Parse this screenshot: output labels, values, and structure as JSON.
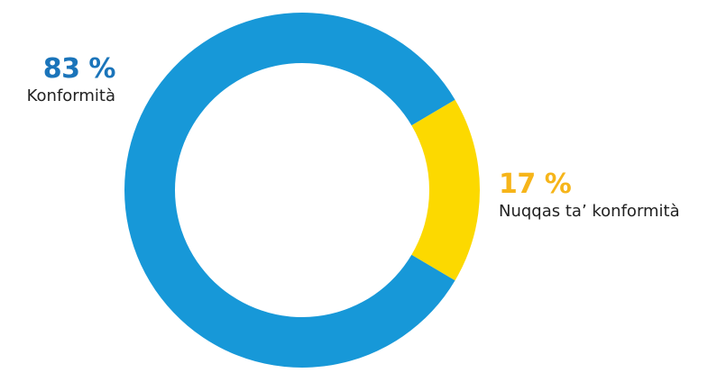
{
  "chart_data": {
    "type": "pie",
    "donut": true,
    "categories": [
      "Konformità",
      "Nuqqas ta’ konformità"
    ],
    "values": [
      83,
      17
    ],
    "value_labels": [
      "83 %",
      "17 %"
    ],
    "colors": [
      "#1798D8",
      "#FCD900"
    ],
    "label_colors": [
      "#1A74BA",
      "#F6B51A"
    ],
    "title": "",
    "legend": "none"
  }
}
